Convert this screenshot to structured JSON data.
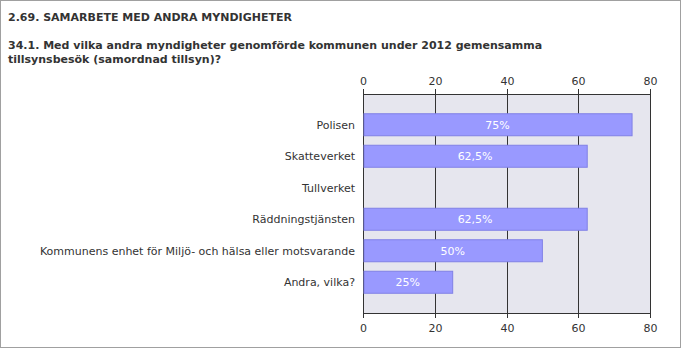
{
  "chart_data": {
    "type": "bar",
    "orientation": "horizontal",
    "title": "2.69. SAMARBETE MED ANDRA MYNDIGHETER",
    "subtitle": "34.1. Med vilka andra myndigheter genomförde kommunen under 2012 gemensamma tillsynsbesök (samordnad tillsyn)?",
    "categories": [
      "Polisen",
      "Skatteverket",
      "Tullverket",
      "Räddningstjänsten",
      "Kommunens enhet för Miljö- och hälsa eller motsvarande",
      "Andra, vilka?"
    ],
    "values": [
      75,
      62.5,
      0,
      62.5,
      50,
      25
    ],
    "value_labels": [
      "75%",
      "62,5%",
      null,
      "62,5%",
      "50%",
      "25%"
    ],
    "color": "#9999ff",
    "xlim": [
      0,
      80
    ],
    "xticks": [
      0,
      20,
      40,
      60,
      80
    ],
    "grid": true,
    "data_labels": true
  }
}
